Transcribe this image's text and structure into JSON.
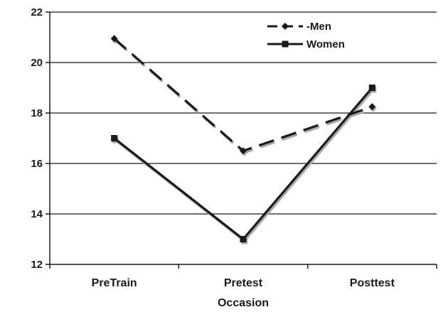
{
  "chart_data": {
    "type": "line",
    "xlabel": "Occasion",
    "ylabel": "",
    "categories": [
      "PreTrain",
      "Pretest",
      "Posttest"
    ],
    "ylim": [
      12,
      22
    ],
    "yticks": [
      12,
      14,
      16,
      18,
      20,
      22
    ],
    "grid": true,
    "legend_position": "top-right",
    "series": [
      {
        "name": "Men",
        "legend_label": "-Men",
        "values": [
          20.95,
          16.5,
          18.25
        ],
        "marker": "diamond",
        "line_style": "dashed",
        "color": "#1a1a1a"
      },
      {
        "name": "Women",
        "legend_label": "Women",
        "values": [
          17.0,
          13.0,
          19.0
        ],
        "marker": "square",
        "line_style": "solid",
        "color": "#1a1a1a"
      }
    ]
  }
}
